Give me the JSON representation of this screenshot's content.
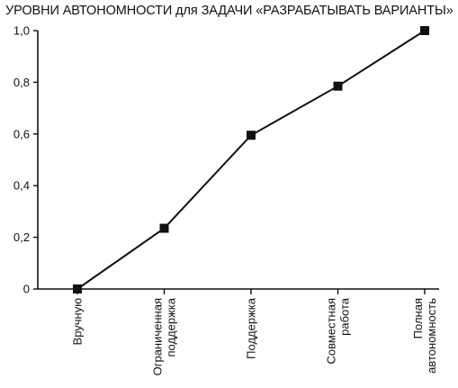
{
  "chart_data": {
    "type": "line",
    "title": "УРОВНИ АВТОНОМНОСТИ для ЗАДАЧИ «РАЗРАБАТЫВАТЬ ВАРИАНТЫ»",
    "xlabel": "",
    "ylabel": "",
    "categories": [
      [
        "Вручную"
      ],
      [
        "Ограниченная",
        "поддержка"
      ],
      [
        "Поддержка"
      ],
      [
        "Совместная",
        "работа"
      ],
      [
        "Полная",
        "автономность"
      ]
    ],
    "series": [
      {
        "values": [
          0.0,
          0.235,
          0.595,
          0.785,
          1.0
        ]
      }
    ],
    "ylim": [
      0,
      1
    ],
    "yticks": [
      0,
      0.2,
      0.4,
      0.6,
      0.8,
      1.0
    ],
    "ytick_labels": [
      "0",
      "0,2",
      "0,4",
      "0,6",
      "0,8",
      "1,0"
    ],
    "grid": false,
    "marker": "square",
    "line_color": "#111111"
  }
}
